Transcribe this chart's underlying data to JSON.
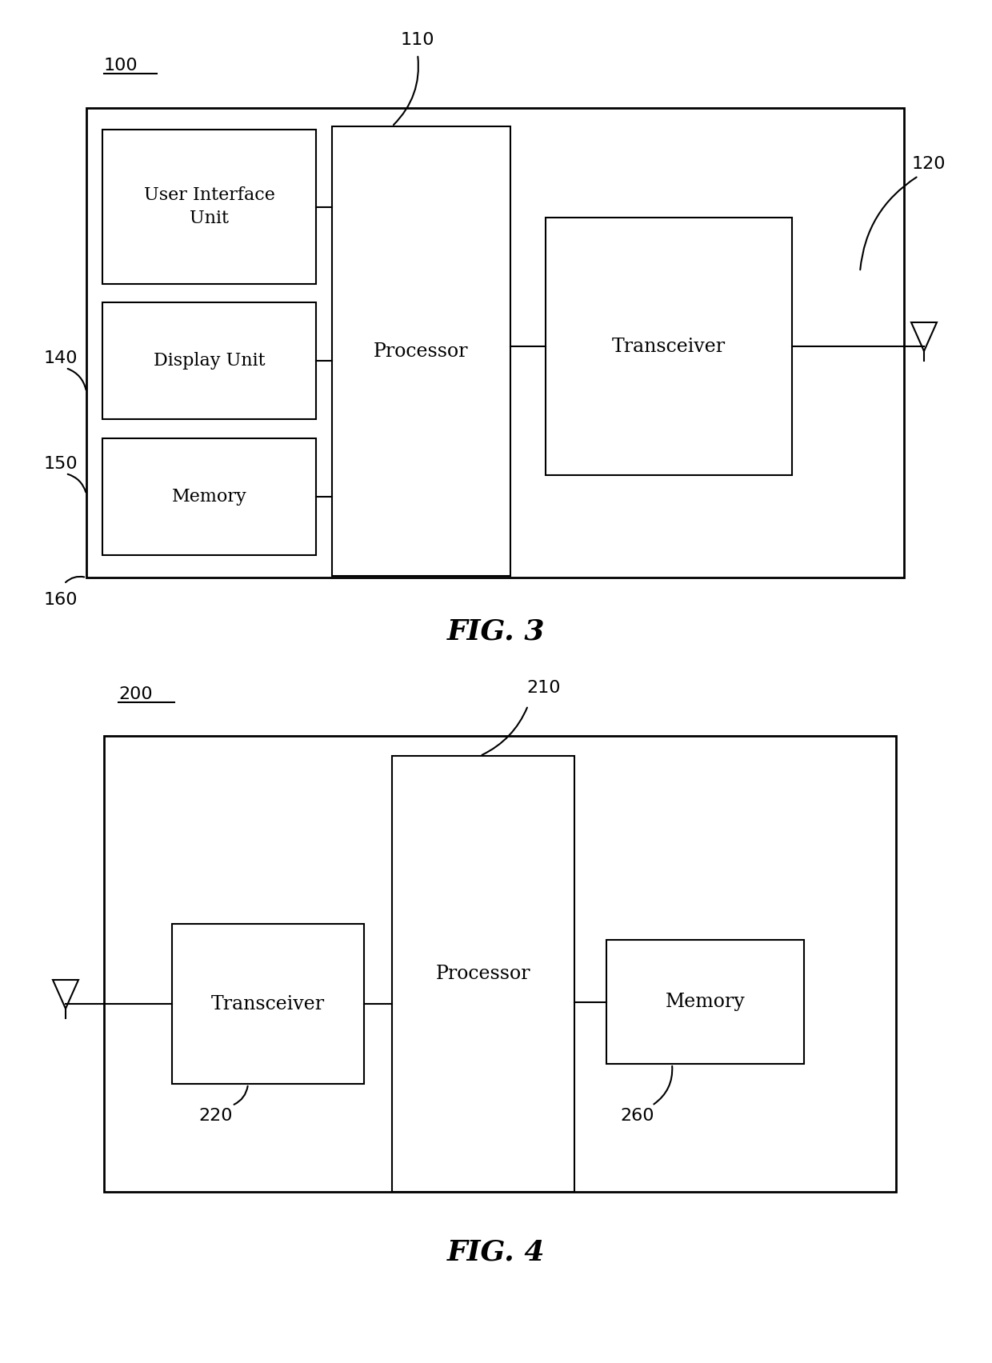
{
  "bg_color": "#ffffff",
  "fig3": {
    "title": "FIG. 3",
    "label_100": "100",
    "label_110": "110",
    "label_120": "120",
    "label_140": "140",
    "label_150": "150",
    "label_160": "160"
  },
  "fig4": {
    "title": "FIG. 4",
    "label_200": "200",
    "label_210": "210",
    "label_220": "220",
    "label_260": "260"
  }
}
